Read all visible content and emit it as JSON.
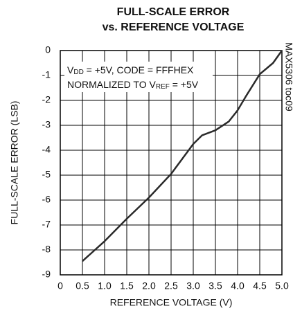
{
  "chart_data": {
    "type": "line",
    "title": [
      "FULL-SCALE ERROR",
      "vs. REFERENCE VOLTAGE"
    ],
    "x_label": "REFERENCE VOLTAGE (V)",
    "y_label": "FULL-SCALE ERROR (LSB)",
    "annotations": [
      [
        "V",
        "DD",
        " = +5V, CODE = FFFHEX"
      ],
      [
        "NORMALIZED TO V",
        "REF",
        " = +5V"
      ]
    ],
    "side_note": "MAX5306 toc09",
    "x": [
      0.5,
      1.0,
      1.5,
      2.0,
      2.5,
      3.0,
      3.2,
      3.5,
      3.8,
      4.0,
      4.2,
      4.5,
      4.8,
      5.0
    ],
    "series": [
      {
        "name": null,
        "color": "#2a2a2a",
        "values": [
          -8.45,
          -7.65,
          -6.75,
          -5.9,
          -4.95,
          -3.75,
          -3.4,
          -3.2,
          -2.85,
          -2.4,
          -1.8,
          -0.95,
          -0.5,
          0
        ]
      }
    ],
    "xlim": [
      0,
      5
    ],
    "ylim": [
      -9,
      0
    ],
    "xticks": [
      0,
      0.5,
      {
        "value": 1,
        "label": "1.0"
      },
      1.5,
      {
        "value": 2,
        "label": "2.0"
      },
      2.5,
      {
        "value": 3,
        "label": "3.0"
      },
      3.5,
      {
        "value": 4,
        "label": "4.0"
      },
      4.5,
      {
        "value": 5,
        "label": "5.0"
      }
    ],
    "yticks": [
      0,
      -1,
      -2,
      -3,
      -4,
      -5,
      -6,
      -7,
      -8,
      -9
    ],
    "grid": true
  }
}
